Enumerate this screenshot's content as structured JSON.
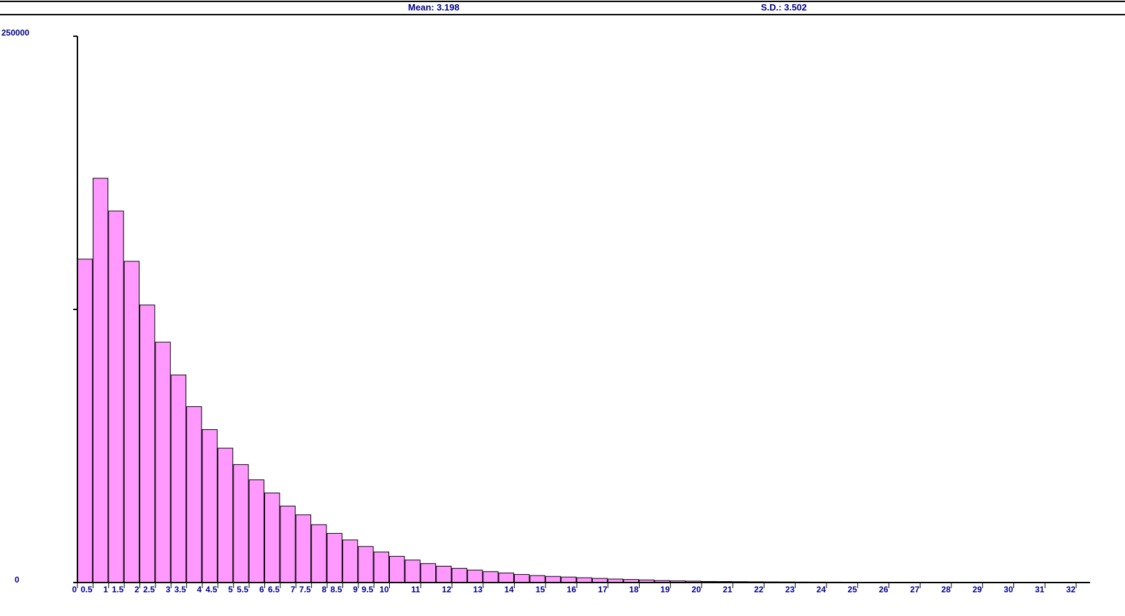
{
  "stats": {
    "mean_label": "Mean: 3.198",
    "sd_label": "S.D.: 3.502"
  },
  "colors": {
    "bar_fill": "#ff99ff",
    "bar_stroke": "#000000",
    "label_color": "#00008b",
    "axis_color": "#000000"
  },
  "chart_data": {
    "type": "bar",
    "bin_width": 0.5,
    "ylim": [
      0,
      250000
    ],
    "ytick_labels": [
      "250000",
      "0"
    ],
    "ytick_values": [
      250000,
      125000,
      0
    ],
    "x_tick_labels": [
      "0",
      "0.5",
      "1",
      "1.5",
      "2",
      "2.5",
      "3",
      "3.5",
      "4",
      "4.5",
      "5",
      "5.5",
      "6",
      "6.5",
      "7",
      "7.5",
      "8",
      "8.5",
      "9",
      "9.5",
      "10",
      "11",
      "12",
      "13",
      "14",
      "15",
      "16",
      "17",
      "18",
      "19",
      "20",
      "21",
      "22",
      "23",
      "24",
      "25",
      "26",
      "27",
      "28",
      "29",
      "30",
      "31",
      "32"
    ],
    "x_tick_values": [
      0,
      0.5,
      1,
      1.5,
      2,
      2.5,
      3,
      3.5,
      4,
      4.5,
      5,
      5.5,
      6,
      6.5,
      7,
      7.5,
      8,
      8.5,
      9,
      9.5,
      10,
      11,
      12,
      13,
      14,
      15,
      16,
      17,
      18,
      19,
      20,
      21,
      22,
      23,
      24,
      25,
      26,
      27,
      28,
      29,
      30,
      31,
      32
    ],
    "x_range": [
      0,
      32
    ],
    "bins_start": [
      0,
      0.5,
      1,
      1.5,
      2,
      2.5,
      3,
      3.5,
      4,
      4.5,
      5,
      5.5,
      6,
      6.5,
      7,
      7.5,
      8,
      8.5,
      9,
      9.5,
      10,
      10.5,
      11,
      11.5,
      12,
      12.5,
      13,
      13.5,
      14,
      14.5,
      15,
      15.5,
      16,
      16.5,
      17,
      17.5,
      18,
      18.5,
      19,
      19.5,
      20,
      20.5,
      21,
      21.5,
      22,
      22.5,
      23,
      23.5,
      24,
      24.5,
      25,
      25.5,
      26,
      26.5,
      27,
      27.5,
      28,
      28.5,
      29,
      29.5,
      30,
      30.5,
      31,
      31.5
    ],
    "values": [
      148000,
      185000,
      170000,
      147000,
      127000,
      110000,
      95000,
      80500,
      70000,
      61500,
      54000,
      47000,
      41000,
      35000,
      31000,
      26500,
      22500,
      19500,
      16500,
      14000,
      12000,
      10300,
      8700,
      7500,
      6500,
      5700,
      5000,
      4400,
      3700,
      3200,
      2800,
      2500,
      2200,
      1900,
      1600,
      1400,
      1200,
      900,
      750,
      650,
      500,
      450,
      400,
      350,
      300,
      270,
      240,
      210,
      190,
      170,
      150,
      135,
      120,
      110,
      100,
      90,
      80,
      70,
      60,
      55,
      50,
      45,
      40,
      35
    ]
  }
}
